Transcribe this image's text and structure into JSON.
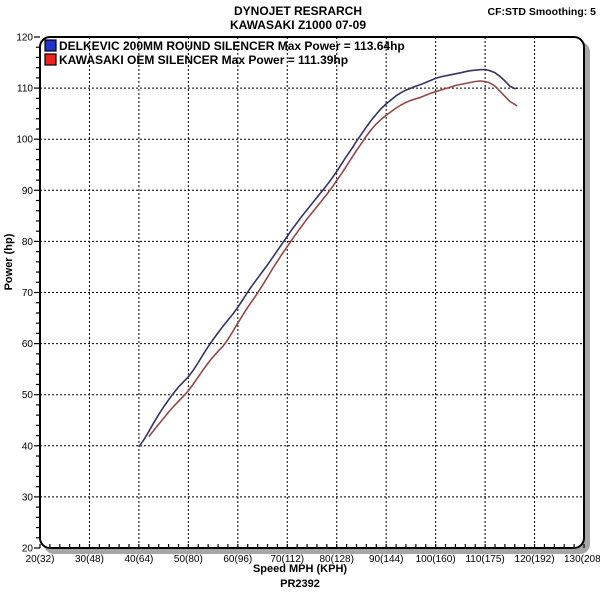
{
  "header": {
    "title": "DYNOJET RESRARCH",
    "subtitle": "KAWASAKI Z1000 07-09",
    "smoothing": "CF:STD Smoothing: 5"
  },
  "footer": {
    "run_id": "PR2392"
  },
  "chart_data": {
    "type": "line",
    "title": "DYNOJET RESRARCH",
    "subtitle": "KAWASAKI Z1000 07-09",
    "xlabel": "Speed MPH (KPH)",
    "ylabel": "Power (hp)",
    "xlim": [
      20,
      130
    ],
    "ylim": [
      20,
      120
    ],
    "grid": "dashed major gridlines, both axes",
    "minor_tick_step_x": 2,
    "minor_tick_step_y": 2,
    "legend_position": "top-left-inside",
    "x_ticks": {
      "values": [
        20,
        30,
        40,
        50,
        60,
        70,
        80,
        90,
        100,
        110,
        120,
        130
      ],
      "labels": [
        "20(32)",
        "30(48)",
        "40(64)",
        "50(80)",
        "60(96)",
        "70(112)",
        "80(128)",
        "90(144)",
        "100(160)",
        "110(175)",
        "120(192)",
        "130(208)"
      ]
    },
    "y_ticks": {
      "values": [
        20,
        30,
        40,
        50,
        60,
        70,
        80,
        90,
        100,
        110,
        120
      ],
      "labels": [
        "20",
        "30",
        "40",
        "50",
        "60",
        "70",
        "80",
        "90",
        "100",
        "110",
        "120"
      ]
    },
    "series": [
      {
        "name": "DELKEVIC 200MM ROUND SILENCER",
        "max_power_hp": 113.64,
        "legend": "DELKEVIC 200MM ROUND SILENCER Max Power = 113.64hp",
        "color": "#333366",
        "swatch_color": "#2233cc",
        "points": [
          [
            40,
            39.8
          ],
          [
            41,
            41.2
          ],
          [
            42,
            42.8
          ],
          [
            43,
            44.5
          ],
          [
            44,
            46.1
          ],
          [
            45,
            47.6
          ],
          [
            46,
            49.0
          ],
          [
            47,
            50.3
          ],
          [
            48,
            51.5
          ],
          [
            49,
            52.5
          ],
          [
            50,
            53.5
          ],
          [
            51,
            54.8
          ],
          [
            52,
            56.3
          ],
          [
            53,
            57.9
          ],
          [
            54,
            59.4
          ],
          [
            55,
            60.8
          ],
          [
            56,
            62.1
          ],
          [
            57,
            63.4
          ],
          [
            58,
            64.6
          ],
          [
            59,
            65.8
          ],
          [
            60,
            67.1
          ],
          [
            61,
            68.6
          ],
          [
            62,
            70.1
          ],
          [
            63,
            71.5
          ],
          [
            64,
            72.8
          ],
          [
            65,
            74.1
          ],
          [
            66,
            75.4
          ],
          [
            67,
            76.8
          ],
          [
            68,
            78.2
          ],
          [
            69,
            79.6
          ],
          [
            70,
            81.0
          ],
          [
            71,
            82.4
          ],
          [
            72,
            83.7
          ],
          [
            73,
            85.0
          ],
          [
            74,
            86.2
          ],
          [
            75,
            87.4
          ],
          [
            76,
            88.6
          ],
          [
            77,
            89.8
          ],
          [
            78,
            91.0
          ],
          [
            79,
            92.3
          ],
          [
            80,
            93.7
          ],
          [
            81,
            95.2
          ],
          [
            82,
            96.7
          ],
          [
            83,
            98.1
          ],
          [
            84,
            99.6
          ],
          [
            85,
            101.0
          ],
          [
            86,
            102.4
          ],
          [
            87,
            103.7
          ],
          [
            88,
            104.9
          ],
          [
            89,
            106.0
          ],
          [
            90,
            106.9
          ],
          [
            91,
            107.7
          ],
          [
            92,
            108.5
          ],
          [
            93,
            109.1
          ],
          [
            94,
            109.6
          ],
          [
            95,
            110.0
          ],
          [
            96,
            110.4
          ],
          [
            97,
            110.7
          ],
          [
            98,
            111.1
          ],
          [
            99,
            111.5
          ],
          [
            100,
            111.9
          ],
          [
            101,
            112.2
          ],
          [
            102,
            112.4
          ],
          [
            103,
            112.6
          ],
          [
            104,
            112.8
          ],
          [
            105,
            113.0
          ],
          [
            106,
            113.2
          ],
          [
            107,
            113.4
          ],
          [
            108,
            113.5
          ],
          [
            109,
            113.6
          ],
          [
            110,
            113.64
          ],
          [
            111,
            113.4
          ],
          [
            112,
            113.0
          ],
          [
            113,
            112.3
          ],
          [
            114,
            111.4
          ],
          [
            115,
            110.4
          ],
          [
            116,
            109.9
          ],
          [
            116.5,
            110.0
          ]
        ]
      },
      {
        "name": "KAWASAKI OEM SILENCER",
        "max_power_hp": 111.39,
        "legend": "KAWASAKI OEM SILENCER Max Power = 111.39hp",
        "color": "#964646",
        "swatch_color": "#ee2222",
        "points": [
          [
            42,
            41.8
          ],
          [
            43,
            43.0
          ],
          [
            44,
            44.2
          ],
          [
            45,
            45.4
          ],
          [
            46,
            46.6
          ],
          [
            47,
            47.7
          ],
          [
            48,
            48.7
          ],
          [
            49,
            49.7
          ],
          [
            50,
            50.8
          ],
          [
            51,
            52.1
          ],
          [
            52,
            53.5
          ],
          [
            53,
            54.9
          ],
          [
            54,
            56.2
          ],
          [
            55,
            57.4
          ],
          [
            56,
            58.5
          ],
          [
            57,
            59.5
          ],
          [
            58,
            60.8
          ],
          [
            59,
            62.4
          ],
          [
            60,
            64.0
          ],
          [
            61,
            65.6
          ],
          [
            62,
            67.1
          ],
          [
            63,
            68.5
          ],
          [
            64,
            69.9
          ],
          [
            65,
            71.4
          ],
          [
            66,
            73.0
          ],
          [
            67,
            74.6
          ],
          [
            68,
            76.1
          ],
          [
            69,
            77.6
          ],
          [
            70,
            79.0
          ],
          [
            71,
            80.4
          ],
          [
            72,
            81.8
          ],
          [
            73,
            83.1
          ],
          [
            74,
            84.4
          ],
          [
            75,
            85.6
          ],
          [
            76,
            86.8
          ],
          [
            77,
            88.0
          ],
          [
            78,
            89.2
          ],
          [
            79,
            90.5
          ],
          [
            80,
            91.9
          ],
          [
            81,
            93.3
          ],
          [
            82,
            94.8
          ],
          [
            83,
            96.3
          ],
          [
            84,
            97.8
          ],
          [
            85,
            99.2
          ],
          [
            86,
            100.6
          ],
          [
            87,
            101.9
          ],
          [
            88,
            103.0
          ],
          [
            89,
            103.9
          ],
          [
            90,
            104.7
          ],
          [
            91,
            105.4
          ],
          [
            92,
            106.1
          ],
          [
            93,
            106.7
          ],
          [
            94,
            107.2
          ],
          [
            95,
            107.6
          ],
          [
            96,
            107.9
          ],
          [
            97,
            108.2
          ],
          [
            98,
            108.6
          ],
          [
            99,
            109.0
          ],
          [
            100,
            109.3
          ],
          [
            101,
            109.6
          ],
          [
            102,
            109.9
          ],
          [
            103,
            110.2
          ],
          [
            104,
            110.5
          ],
          [
            105,
            110.7
          ],
          [
            106,
            110.9
          ],
          [
            107,
            111.1
          ],
          [
            108,
            111.3
          ],
          [
            109,
            111.39
          ],
          [
            110,
            111.3
          ],
          [
            111,
            111.0
          ],
          [
            112,
            110.4
          ],
          [
            113,
            109.4
          ],
          [
            114,
            108.4
          ],
          [
            115,
            107.4
          ],
          [
            116,
            106.8
          ],
          [
            116.5,
            106.5
          ]
        ]
      }
    ]
  }
}
